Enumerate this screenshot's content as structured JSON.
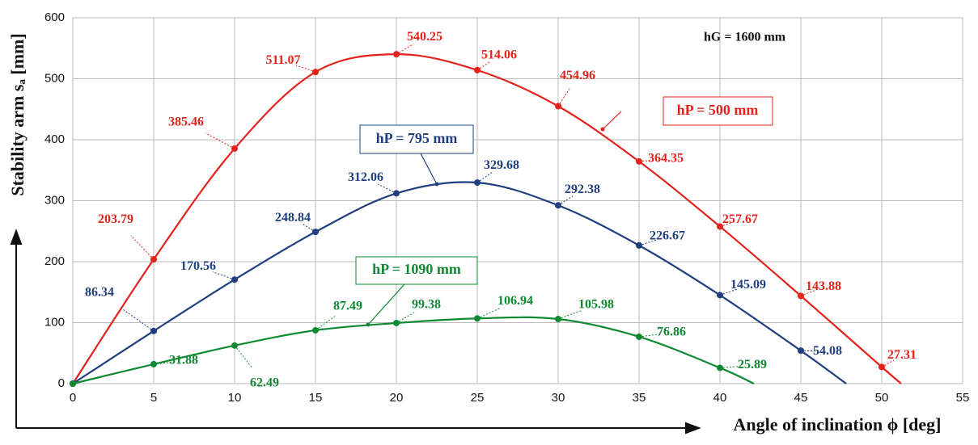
{
  "chart_data": {
    "type": "line",
    "x_label": "Angle of inclination ϕ [deg]",
    "y_label": "Stability arm sₐ [mm]",
    "annotation": "hG = 1600 mm",
    "xlim": [
      0,
      55
    ],
    "xticks": [
      0,
      5,
      10,
      15,
      20,
      25,
      30,
      35,
      40,
      45,
      50,
      55
    ],
    "ylim": [
      0,
      600
    ],
    "yticks": [
      0,
      100,
      200,
      300,
      400,
      500,
      600
    ],
    "grid": true,
    "series": [
      {
        "name": "hP = 500 mm",
        "color": "#e3221b",
        "x": [
          0,
          5,
          10,
          15,
          20,
          25,
          30,
          35,
          40,
          45,
          50,
          51.2
        ],
        "values": [
          0,
          203.79,
          385.46,
          511.07,
          540.25,
          514.06,
          454.96,
          364.35,
          257.67,
          143.88,
          27.31,
          0
        ]
      },
      {
        "name": "hP = 795 mm",
        "color": "#1f3f7f",
        "x": [
          0,
          5,
          10,
          15,
          20,
          25,
          30,
          35,
          40,
          45,
          47.8
        ],
        "values": [
          0,
          86.34,
          170.56,
          248.84,
          312.06,
          329.68,
          292.38,
          226.67,
          145.09,
          54.08,
          0
        ]
      },
      {
        "name": "hP = 1090 mm",
        "color": "#0f8a33",
        "x": [
          0,
          5,
          10,
          15,
          20,
          25,
          30,
          35,
          40,
          42.1
        ],
        "values": [
          0,
          31.88,
          62.49,
          87.49,
          99.38,
          106.94,
          105.98,
          76.86,
          25.89,
          0
        ]
      }
    ]
  }
}
